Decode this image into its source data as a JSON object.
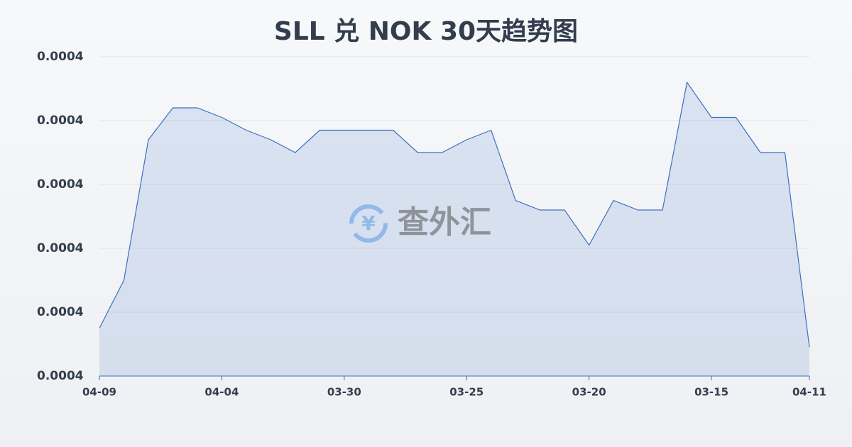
{
  "chart_data": {
    "type": "area",
    "title": "SLL 兑 NOK 30天趋势图",
    "watermark": "查外汇",
    "categories": [
      "04-09",
      null,
      null,
      null,
      null,
      "04-04",
      null,
      null,
      null,
      null,
      "03-30",
      null,
      null,
      null,
      null,
      "03-25",
      null,
      null,
      null,
      null,
      "03-20",
      null,
      null,
      null,
      null,
      "03-15",
      null,
      null,
      null,
      "04-11"
    ],
    "values": [
      0.0004415,
      0.000443,
      0.0004474,
      0.0004484,
      0.0004484,
      0.0004481,
      0.0004477,
      0.0004474,
      0.000447,
      0.0004477,
      0.0004477,
      0.0004477,
      0.0004477,
      0.000447,
      0.000447,
      0.0004474,
      0.0004477,
      0.0004455,
      0.0004452,
      0.0004452,
      0.0004441,
      0.0004455,
      0.0004452,
      0.0004452,
      0.0004492,
      0.0004481,
      0.0004481,
      0.000447,
      0.000447,
      0.0004409
    ],
    "color": "#3f6fc2",
    "ylim": [
      0.00044,
      0.00045
    ],
    "yticks": [
      {
        "value": 0.00044,
        "label": "0.0004"
      },
      {
        "value": 0.000442,
        "label": "0.0004"
      },
      {
        "value": 0.000444,
        "label": "0.0004"
      },
      {
        "value": 0.000446,
        "label": "0.0004"
      },
      {
        "value": 0.000448,
        "label": "0.0004"
      },
      {
        "value": 0.00045,
        "label": "0.0004"
      }
    ],
    "grid": true
  }
}
